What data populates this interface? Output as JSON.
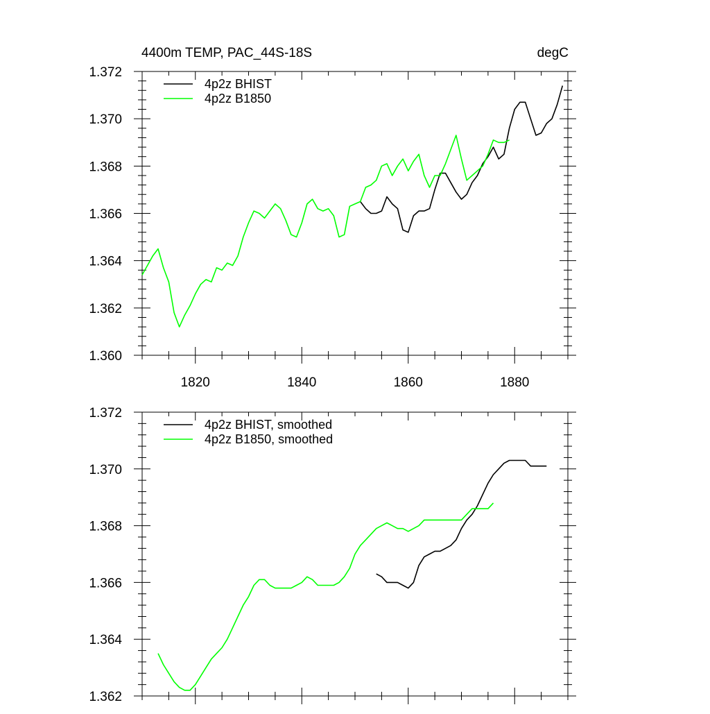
{
  "chart_data": [
    {
      "type": "line",
      "title_left": "4400m TEMP, PAC_44S-18S",
      "title_right": "degC",
      "xlim": [
        1810,
        1890
      ],
      "ylim": [
        1.36,
        1.372
      ],
      "xticks": [
        1820,
        1840,
        1860,
        1880
      ],
      "xtick_labels": [
        "1820",
        "1840",
        "1860",
        "1880"
      ],
      "yticks": [
        1.36,
        1.362,
        1.364,
        1.366,
        1.368,
        1.37,
        1.372
      ],
      "ytick_labels": [
        "1.360",
        "1.362",
        "1.364",
        "1.366",
        "1.368",
        "1.370",
        "1.372"
      ],
      "legend_position": "top-left",
      "series": [
        {
          "name": "4p2z BHIST",
          "color": "#000000",
          "x": [
            1851,
            1852,
            1853,
            1854,
            1855,
            1856,
            1857,
            1858,
            1859,
            1860,
            1861,
            1862,
            1863,
            1864,
            1865,
            1866,
            1867,
            1868,
            1869,
            1870,
            1871,
            1872,
            1873,
            1874,
            1875,
            1876,
            1877,
            1878,
            1879,
            1880,
            1881,
            1882,
            1883,
            1884,
            1885,
            1886,
            1887,
            1888,
            1889
          ],
          "y": [
            1.3665,
            1.3662,
            1.366,
            1.366,
            1.3661,
            1.3667,
            1.3664,
            1.3662,
            1.3653,
            1.3652,
            1.3659,
            1.3661,
            1.3661,
            1.3662,
            1.367,
            1.3677,
            1.3677,
            1.3673,
            1.3669,
            1.3666,
            1.3668,
            1.3673,
            1.3676,
            1.3681,
            1.3684,
            1.3688,
            1.3683,
            1.3685,
            1.3696,
            1.3704,
            1.3707,
            1.3707,
            1.37,
            1.3693,
            1.3694,
            1.3698,
            1.37,
            1.3706,
            1.3714
          ]
        },
        {
          "name": "4p2z B1850",
          "color": "#00ff00",
          "x": [
            1810,
            1811,
            1812,
            1813,
            1814,
            1815,
            1816,
            1817,
            1818,
            1819,
            1820,
            1821,
            1822,
            1823,
            1824,
            1825,
            1826,
            1827,
            1828,
            1829,
            1830,
            1831,
            1832,
            1833,
            1834,
            1835,
            1836,
            1837,
            1838,
            1839,
            1840,
            1841,
            1842,
            1843,
            1844,
            1845,
            1846,
            1847,
            1848,
            1849,
            1850,
            1851,
            1852,
            1853,
            1854,
            1855,
            1856,
            1857,
            1858,
            1859,
            1860,
            1861,
            1862,
            1863,
            1864,
            1865,
            1866,
            1867,
            1868,
            1869,
            1870,
            1871,
            1872,
            1873,
            1874,
            1875,
            1876,
            1877,
            1878,
            1879
          ],
          "y": [
            1.3634,
            1.3638,
            1.3642,
            1.3645,
            1.3637,
            1.3631,
            1.3618,
            1.3612,
            1.3617,
            1.3621,
            1.3626,
            1.363,
            1.3632,
            1.3631,
            1.3637,
            1.3636,
            1.3639,
            1.3638,
            1.3642,
            1.365,
            1.3656,
            1.3661,
            1.366,
            1.3658,
            1.3661,
            1.3664,
            1.3662,
            1.3657,
            1.3651,
            1.365,
            1.3656,
            1.3664,
            1.3666,
            1.3662,
            1.3661,
            1.3662,
            1.3659,
            1.365,
            1.3651,
            1.3663,
            1.3664,
            1.3665,
            1.3671,
            1.3672,
            1.3674,
            1.368,
            1.3681,
            1.3676,
            1.368,
            1.3683,
            1.3678,
            1.3682,
            1.3685,
            1.3676,
            1.3671,
            1.3676,
            1.3676,
            1.3681,
            1.3687,
            1.3693,
            1.3683,
            1.3674,
            1.3676,
            1.3678,
            1.368,
            1.3685,
            1.3691,
            1.369,
            1.369,
            1.3691
          ]
        }
      ]
    },
    {
      "type": "line",
      "xlim": [
        1810,
        1890
      ],
      "ylim": [
        1.362,
        1.372
      ],
      "xticks": [
        1820,
        1840,
        1860,
        1880
      ],
      "yticks": [
        1.362,
        1.364,
        1.366,
        1.368,
        1.37,
        1.372
      ],
      "ytick_labels": [
        "1.362",
        "1.364",
        "1.366",
        "1.368",
        "1.370",
        "1.372"
      ],
      "legend_position": "top-left",
      "series": [
        {
          "name": "4p2z BHIST, smoothed",
          "color": "#000000",
          "x": [
            1854,
            1855,
            1856,
            1857,
            1858,
            1859,
            1860,
            1861,
            1862,
            1863,
            1864,
            1865,
            1866,
            1867,
            1868,
            1869,
            1870,
            1871,
            1872,
            1873,
            1874,
            1875,
            1876,
            1877,
            1878,
            1879,
            1880,
            1881,
            1882,
            1883,
            1884,
            1885,
            1886
          ],
          "y": [
            1.3663,
            1.3662,
            1.366,
            1.366,
            1.366,
            1.3659,
            1.3658,
            1.366,
            1.3666,
            1.3669,
            1.367,
            1.3671,
            1.3671,
            1.3672,
            1.3673,
            1.3675,
            1.3679,
            1.3682,
            1.3684,
            1.3687,
            1.3691,
            1.3695,
            1.3698,
            1.37,
            1.3702,
            1.3703,
            1.3703,
            1.3703,
            1.3703,
            1.3701,
            1.3701,
            1.3701,
            1.3701
          ]
        },
        {
          "name": "4p2z B1850, smoothed",
          "color": "#00ff00",
          "x": [
            1813,
            1814,
            1815,
            1816,
            1817,
            1818,
            1819,
            1820,
            1821,
            1822,
            1823,
            1824,
            1825,
            1826,
            1827,
            1828,
            1829,
            1830,
            1831,
            1832,
            1833,
            1834,
            1835,
            1836,
            1837,
            1838,
            1839,
            1840,
            1841,
            1842,
            1843,
            1844,
            1845,
            1846,
            1847,
            1848,
            1849,
            1850,
            1851,
            1852,
            1853,
            1854,
            1855,
            1856,
            1857,
            1858,
            1859,
            1860,
            1861,
            1862,
            1863,
            1864,
            1865,
            1866,
            1867,
            1868,
            1869,
            1870,
            1871,
            1872,
            1873,
            1874,
            1875,
            1876
          ],
          "y": [
            1.3635,
            1.3631,
            1.3628,
            1.3625,
            1.3623,
            1.3622,
            1.3622,
            1.3624,
            1.3627,
            1.363,
            1.3633,
            1.3635,
            1.3637,
            1.364,
            1.3644,
            1.3648,
            1.3652,
            1.3655,
            1.3659,
            1.3661,
            1.3661,
            1.3659,
            1.3658,
            1.3658,
            1.3658,
            1.3658,
            1.3659,
            1.366,
            1.3662,
            1.3661,
            1.3659,
            1.3659,
            1.3659,
            1.3659,
            1.366,
            1.3662,
            1.3665,
            1.367,
            1.3673,
            1.3675,
            1.3677,
            1.3679,
            1.368,
            1.3681,
            1.368,
            1.3679,
            1.3679,
            1.3678,
            1.3679,
            1.368,
            1.3682,
            1.3682,
            1.3682,
            1.3682,
            1.3682,
            1.3682,
            1.3682,
            1.3682,
            1.3684,
            1.3686,
            1.3686,
            1.3686,
            1.3686,
            1.3688
          ]
        }
      ]
    }
  ]
}
